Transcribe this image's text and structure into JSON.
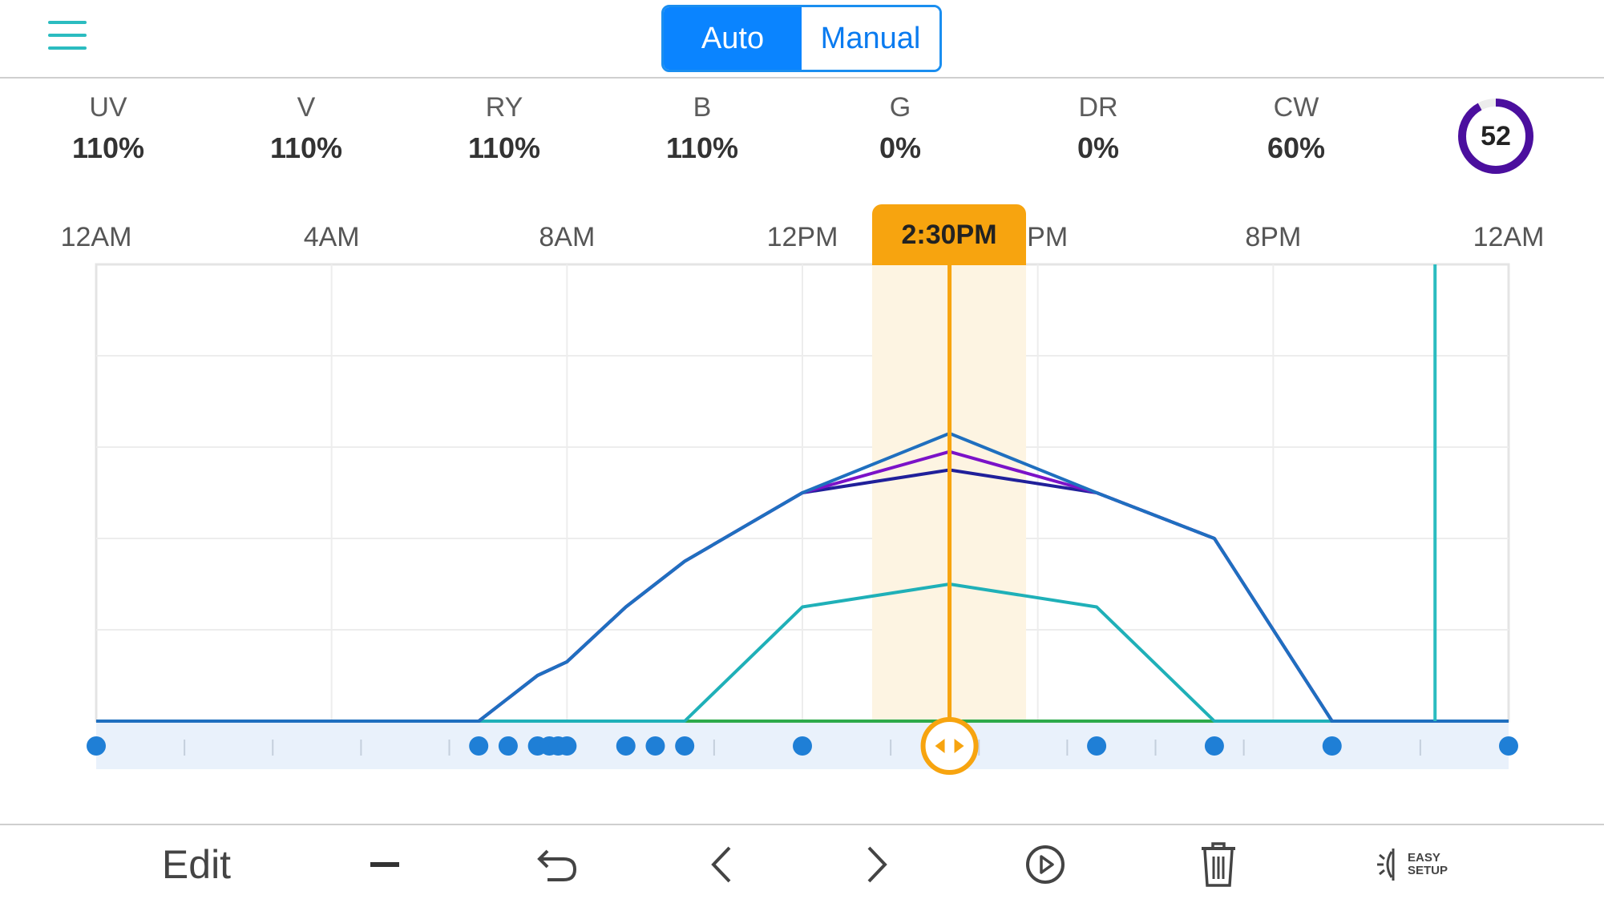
{
  "header": {
    "menu_icon": "hamburger-menu-icon",
    "modes": {
      "auto_label": "Auto",
      "manual_label": "Manual",
      "selected": "Auto"
    },
    "accent_color": "#0a84ff"
  },
  "channels": [
    {
      "name": "UV",
      "value": "110%"
    },
    {
      "name": "V",
      "value": "110%"
    },
    {
      "name": "RY",
      "value": "110%"
    },
    {
      "name": "B",
      "value": "110%"
    },
    {
      "name": "G",
      "value": "0%"
    },
    {
      "name": "DR",
      "value": "0%"
    },
    {
      "name": "CW",
      "value": "60%"
    }
  ],
  "intensity": {
    "value": "52",
    "fraction": 0.92,
    "color": "#4b0f9e"
  },
  "timeline": {
    "tick_labels": [
      "12AM",
      "4AM",
      "8AM",
      "12PM",
      "PM",
      "8PM",
      "12AM"
    ],
    "current_time_label": "2:30PM",
    "current_time_hours": 14.5,
    "current_time_color": "#f7a40f"
  },
  "chart_data": {
    "type": "line",
    "x_unit": "hours",
    "xlim": [
      0,
      24
    ],
    "ylim": [
      0,
      100
    ],
    "current_time": 14.5,
    "now_marker_time": 22.75,
    "series": [
      {
        "color": "#1f6fbf",
        "points": [
          [
            0,
            0
          ],
          [
            6.5,
            0
          ],
          [
            7.5,
            10
          ],
          [
            8,
            13
          ],
          [
            9,
            25
          ],
          [
            10,
            35
          ],
          [
            12,
            50
          ],
          [
            14.5,
            63
          ],
          [
            17,
            50
          ],
          [
            19,
            40
          ],
          [
            21,
            0
          ],
          [
            24,
            0
          ]
        ]
      },
      {
        "color": "#7b12c8",
        "points": [
          [
            0,
            0
          ],
          [
            6.5,
            0
          ],
          [
            7.5,
            10
          ],
          [
            8,
            13
          ],
          [
            9,
            25
          ],
          [
            10,
            35
          ],
          [
            12,
            50
          ],
          [
            14.5,
            59
          ],
          [
            17,
            50
          ],
          [
            19,
            40
          ],
          [
            21,
            0
          ],
          [
            24,
            0
          ]
        ]
      },
      {
        "color": "#20209a",
        "points": [
          [
            0,
            0
          ],
          [
            6.5,
            0
          ],
          [
            7.5,
            10
          ],
          [
            8,
            13
          ],
          [
            9,
            25
          ],
          [
            10,
            35
          ],
          [
            12,
            50
          ],
          [
            14.5,
            55
          ],
          [
            17,
            50
          ],
          [
            19,
            40
          ],
          [
            21,
            0
          ],
          [
            24,
            0
          ]
        ]
      },
      {
        "color": "#1fb0b8",
        "points": [
          [
            0,
            0
          ],
          [
            10,
            0
          ],
          [
            12,
            25
          ],
          [
            14.5,
            30
          ],
          [
            17,
            25
          ],
          [
            19,
            0
          ],
          [
            24,
            0
          ]
        ]
      },
      {
        "color": "#2eaa4a",
        "points": [
          [
            0,
            0
          ],
          [
            24,
            0
          ]
        ]
      }
    ],
    "keyframe_times": [
      0,
      6.5,
      7,
      7.5,
      7.7,
      7.85,
      8,
      9,
      9.5,
      10,
      12,
      17,
      19,
      21,
      24
    ],
    "now_marker_color": "#2bbcc0"
  },
  "toolbar": {
    "edit_label": "Edit",
    "minus_icon": "minus-icon",
    "undo_icon": "undo-icon",
    "prev_icon": "chevron-left-icon",
    "next_icon": "chevron-right-icon",
    "play_icon": "play-circle-icon",
    "delete_icon": "trash-icon",
    "easy_setup_line1": "EASY",
    "easy_setup_line2": "SETUP"
  }
}
